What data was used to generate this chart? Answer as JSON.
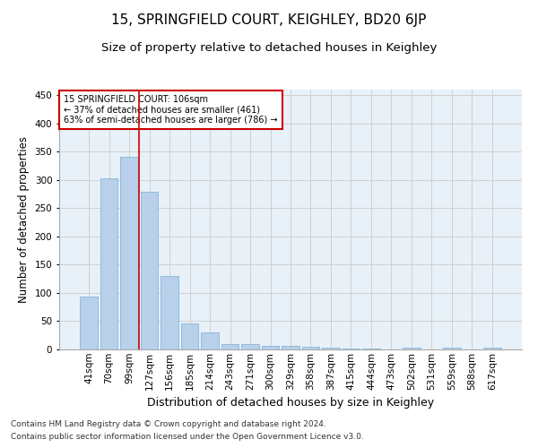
{
  "title1": "15, SPRINGFIELD COURT, KEIGHLEY, BD20 6JP",
  "title2": "Size of property relative to detached houses in Keighley",
  "xlabel": "Distribution of detached houses by size in Keighley",
  "ylabel": "Number of detached properties",
  "categories": [
    "41sqm",
    "70sqm",
    "99sqm",
    "127sqm",
    "156sqm",
    "185sqm",
    "214sqm",
    "243sqm",
    "271sqm",
    "300sqm",
    "329sqm",
    "358sqm",
    "387sqm",
    "415sqm",
    "444sqm",
    "473sqm",
    "502sqm",
    "531sqm",
    "559sqm",
    "588sqm",
    "617sqm"
  ],
  "values": [
    93,
    303,
    341,
    279,
    130,
    46,
    30,
    9,
    10,
    7,
    7,
    5,
    3,
    1,
    1,
    0,
    3,
    0,
    3,
    0,
    3
  ],
  "bar_color": "#b8d0ea",
  "bar_edge_color": "#7aafd4",
  "vline_x": 2.5,
  "vline_color": "#cc0000",
  "annotation_box_text": "15 SPRINGFIELD COURT: 106sqm\n← 37% of detached houses are smaller (461)\n63% of semi-detached houses are larger (786) →",
  "annotation_box_color": "#cc0000",
  "annotation_box_bg": "#ffffff",
  "footnote1": "Contains HM Land Registry data © Crown copyright and database right 2024.",
  "footnote2": "Contains public sector information licensed under the Open Government Licence v3.0.",
  "ylim": [
    0,
    460
  ],
  "yticks": [
    0,
    50,
    100,
    150,
    200,
    250,
    300,
    350,
    400,
    450
  ],
  "grid_color": "#cccccc",
  "bg_color": "#e8f0f8",
  "title1_fontsize": 11,
  "title2_fontsize": 9.5,
  "axis_label_fontsize": 8.5,
  "tick_fontsize": 7.5,
  "footnote_fontsize": 6.5
}
